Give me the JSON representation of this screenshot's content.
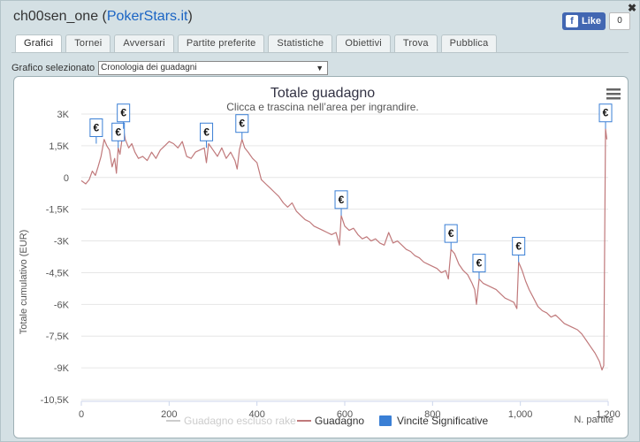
{
  "header": {
    "username": "ch00sen_one",
    "site": "PokerStars.it"
  },
  "facebook": {
    "like_label": "Like",
    "count": "0"
  },
  "tabs": [
    {
      "label": "Grafici",
      "active": true
    },
    {
      "label": "Tornei"
    },
    {
      "label": "Avversari"
    },
    {
      "label": "Partite preferite"
    },
    {
      "label": "Statistiche"
    },
    {
      "label": "Obiettivi"
    },
    {
      "label": "Trova"
    },
    {
      "label": "Pubblica"
    }
  ],
  "selector": {
    "label": "Grafico selezionato",
    "value": "Cronologia dei guadagni"
  },
  "chart_data": {
    "type": "line",
    "title": "Totale guadagno",
    "subtitle": "Clicca e trascina nell’area per ingrandire.",
    "ylabel": "Totale cumulativo (EUR)",
    "xlabel": "N. partite",
    "ylim": [
      -10500,
      3000
    ],
    "xlim": [
      0,
      1200
    ],
    "x_ticks": [
      "0",
      "200",
      "400",
      "600",
      "800",
      "1,000",
      "1,200"
    ],
    "x_tick_values": [
      0,
      200,
      400,
      600,
      800,
      1000,
      1200
    ],
    "y_ticks": [
      "3K",
      "1,5K",
      "0",
      "-1,5K",
      "-3K",
      "-4,5K",
      "-6K",
      "-7,5K",
      "-9K",
      "-10,5K"
    ],
    "y_tick_values": [
      3000,
      1500,
      0,
      -1500,
      -3000,
      -4500,
      -6000,
      -7500,
      -9000,
      -10500
    ],
    "legend": [
      {
        "name": "Guadagno escluso rake",
        "color": "#cccccc",
        "kind": "line"
      },
      {
        "name": "Guadagno",
        "color": "#c0797b",
        "kind": "line"
      },
      {
        "name": "Vincite Significative",
        "color": "#3a7fd5",
        "kind": "box"
      }
    ],
    "series": [
      {
        "name": "Guadagno",
        "color": "#c0797b",
        "points": [
          [
            0,
            -150
          ],
          [
            10,
            -300
          ],
          [
            18,
            -100
          ],
          [
            25,
            300
          ],
          [
            32,
            100
          ],
          [
            38,
            500
          ],
          [
            45,
            1000
          ],
          [
            52,
            1800
          ],
          [
            58,
            1500
          ],
          [
            64,
            1300
          ],
          [
            70,
            500
          ],
          [
            76,
            900
          ],
          [
            80,
            200
          ],
          [
            84,
            1400
          ],
          [
            88,
            1100
          ],
          [
            92,
            1700
          ],
          [
            96,
            2300
          ],
          [
            100,
            1800
          ],
          [
            108,
            1400
          ],
          [
            115,
            1600
          ],
          [
            122,
            1200
          ],
          [
            130,
            900
          ],
          [
            140,
            1000
          ],
          [
            150,
            800
          ],
          [
            160,
            1200
          ],
          [
            170,
            900
          ],
          [
            180,
            1300
          ],
          [
            190,
            1500
          ],
          [
            200,
            1700
          ],
          [
            210,
            1600
          ],
          [
            220,
            1400
          ],
          [
            230,
            1700
          ],
          [
            240,
            1000
          ],
          [
            250,
            900
          ],
          [
            260,
            1200
          ],
          [
            270,
            1300
          ],
          [
            280,
            1400
          ],
          [
            285,
            700
          ],
          [
            290,
            1600
          ],
          [
            300,
            1300
          ],
          [
            310,
            1000
          ],
          [
            320,
            1400
          ],
          [
            330,
            900
          ],
          [
            340,
            1200
          ],
          [
            350,
            800
          ],
          [
            355,
            400
          ],
          [
            360,
            1300
          ],
          [
            366,
            1800
          ],
          [
            372,
            1400
          ],
          [
            380,
            1200
          ],
          [
            390,
            900
          ],
          [
            400,
            700
          ],
          [
            410,
            -100
          ],
          [
            420,
            -300
          ],
          [
            430,
            -500
          ],
          [
            440,
            -700
          ],
          [
            450,
            -900
          ],
          [
            460,
            -1200
          ],
          [
            470,
            -1400
          ],
          [
            480,
            -1200
          ],
          [
            490,
            -1600
          ],
          [
            500,
            -1800
          ],
          [
            510,
            -2000
          ],
          [
            520,
            -2100
          ],
          [
            530,
            -2300
          ],
          [
            540,
            -2400
          ],
          [
            550,
            -2500
          ],
          [
            560,
            -2600
          ],
          [
            570,
            -2700
          ],
          [
            580,
            -2600
          ],
          [
            588,
            -3200
          ],
          [
            592,
            -1800
          ],
          [
            600,
            -2300
          ],
          [
            610,
            -2500
          ],
          [
            620,
            -2400
          ],
          [
            630,
            -2700
          ],
          [
            640,
            -2900
          ],
          [
            650,
            -2800
          ],
          [
            660,
            -3000
          ],
          [
            670,
            -2900
          ],
          [
            680,
            -3100
          ],
          [
            690,
            -3200
          ],
          [
            700,
            -2600
          ],
          [
            710,
            -3100
          ],
          [
            720,
            -3000
          ],
          [
            730,
            -3200
          ],
          [
            740,
            -3400
          ],
          [
            750,
            -3500
          ],
          [
            760,
            -3700
          ],
          [
            770,
            -3800
          ],
          [
            780,
            -4000
          ],
          [
            790,
            -4100
          ],
          [
            800,
            -4200
          ],
          [
            810,
            -4300
          ],
          [
            820,
            -4500
          ],
          [
            830,
            -4400
          ],
          [
            836,
            -4800
          ],
          [
            842,
            -3400
          ],
          [
            850,
            -3600
          ],
          [
            860,
            -4100
          ],
          [
            870,
            -4400
          ],
          [
            880,
            -4600
          ],
          [
            890,
            -5000
          ],
          [
            896,
            -5300
          ],
          [
            900,
            -6000
          ],
          [
            906,
            -4800
          ],
          [
            915,
            -5000
          ],
          [
            925,
            -5100
          ],
          [
            935,
            -5200
          ],
          [
            945,
            -5300
          ],
          [
            955,
            -5500
          ],
          [
            965,
            -5700
          ],
          [
            975,
            -5800
          ],
          [
            985,
            -5900
          ],
          [
            992,
            -6200
          ],
          [
            996,
            -4000
          ],
          [
            1004,
            -4400
          ],
          [
            1012,
            -4900
          ],
          [
            1020,
            -5300
          ],
          [
            1030,
            -5700
          ],
          [
            1040,
            -6100
          ],
          [
            1050,
            -6300
          ],
          [
            1060,
            -6400
          ],
          [
            1070,
            -6600
          ],
          [
            1080,
            -6500
          ],
          [
            1090,
            -6700
          ],
          [
            1100,
            -6900
          ],
          [
            1110,
            -7000
          ],
          [
            1120,
            -7100
          ],
          [
            1130,
            -7200
          ],
          [
            1140,
            -7400
          ],
          [
            1150,
            -7700
          ],
          [
            1160,
            -8000
          ],
          [
            1170,
            -8300
          ],
          [
            1180,
            -8700
          ],
          [
            1186,
            -9100
          ],
          [
            1190,
            -8900
          ],
          [
            1194,
            2300
          ],
          [
            1197,
            1800
          ]
        ]
      }
    ],
    "flags": [
      {
        "x": 34,
        "y": 1600,
        "label": "€"
      },
      {
        "x": 84,
        "y": 1400,
        "label": "€"
      },
      {
        "x": 96,
        "y": 2300,
        "label": "€"
      },
      {
        "x": 285,
        "y": 1400,
        "label": "€"
      },
      {
        "x": 366,
        "y": 1800,
        "label": "€"
      },
      {
        "x": 592,
        "y": -1800,
        "label": "€"
      },
      {
        "x": 842,
        "y": -3400,
        "label": "€"
      },
      {
        "x": 906,
        "y": -4800,
        "label": "€"
      },
      {
        "x": 996,
        "y": -4000,
        "label": "€"
      },
      {
        "x": 1194,
        "y": 2300,
        "label": "€"
      }
    ],
    "grid": true,
    "legend_position": "bottom"
  }
}
